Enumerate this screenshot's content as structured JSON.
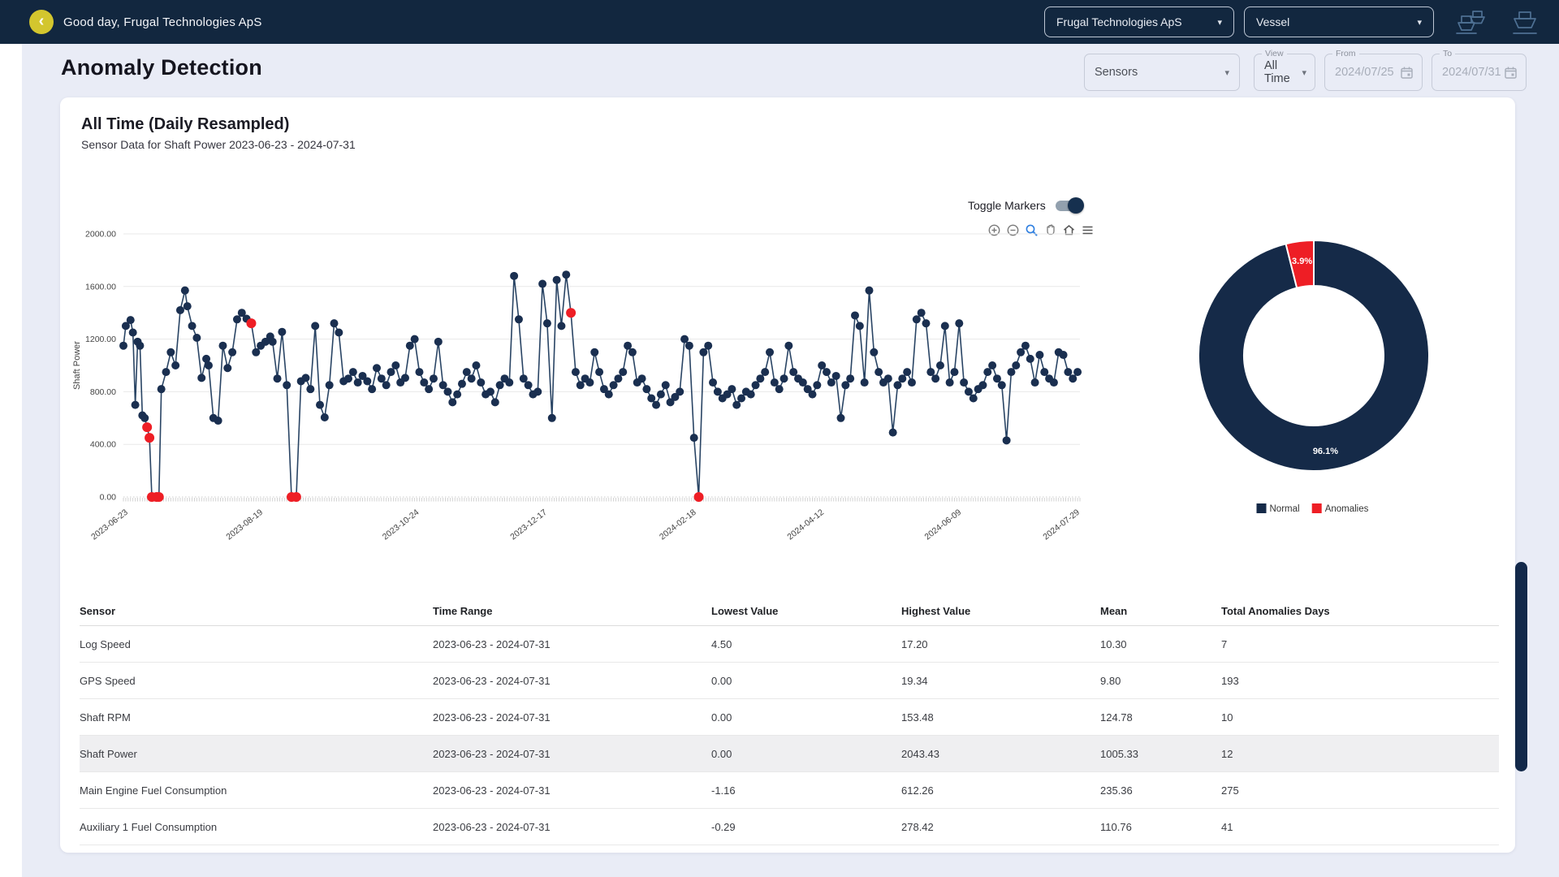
{
  "navbar": {
    "back_glyph": "‹",
    "greeting": "Good day, Frugal Technologies ApS",
    "company_select": {
      "value": "Frugal Technologies ApS",
      "caret": "▾"
    },
    "vessel_select": {
      "value": "Vessel",
      "caret": "▾"
    }
  },
  "page": {
    "title": "Anomaly Detection"
  },
  "filters": {
    "sensors": {
      "value": "Sensors",
      "caret": "▾"
    },
    "view": {
      "label": "View",
      "value": "All Time",
      "caret": "▾"
    },
    "from": {
      "label": "From",
      "value": "2024/07/25"
    },
    "to": {
      "label": "To",
      "value": "2024/07/31"
    }
  },
  "card": {
    "title": "All Time (Daily Resampled)",
    "subtitle": "Sensor Data for Shaft Power 2023-06-23 - 2024-07-31",
    "toggle_markers_label": "Toggle Markers",
    "toggle_markers_on": true
  },
  "chart_data": [
    {
      "type": "scatter",
      "title": "Sensor Data for Shaft Power 2023-06-23 - 2024-07-31",
      "xlabel": "",
      "ylabel": "Shaft Power",
      "ylim": [
        0,
        2000
      ],
      "ytick_values": [
        0,
        400,
        800,
        1200,
        1600,
        2000
      ],
      "ytick_labels": [
        "0.00",
        "400.00",
        "800.00",
        "1200.00",
        "1600.00",
        "2000.00"
      ],
      "xtick_labels": [
        "2023-06-23",
        "2023-08-19",
        "2023-10-24",
        "2023-12-17",
        "2024-02-18",
        "2024-04-12",
        "2024-06-09",
        "2024-07-29"
      ],
      "xtick_days": [
        0,
        57,
        123,
        177,
        240,
        294,
        352,
        402
      ],
      "x_day_range": [
        0,
        404
      ],
      "grid": true,
      "colors": {
        "normal": "#1a2f50",
        "anomaly": "#ee1e25",
        "line": "#1d3a5c"
      },
      "points_format": "[day_offset_from_2023-06-23, shaft_power_value, 1_if_anomaly]",
      "points": [
        [
          0,
          1150
        ],
        [
          1,
          1300
        ],
        [
          3,
          1345
        ],
        [
          4,
          1250
        ],
        [
          5,
          700
        ],
        [
          6,
          1180
        ],
        [
          7,
          1150
        ],
        [
          8,
          620
        ],
        [
          9,
          600
        ],
        [
          10,
          530,
          1
        ],
        [
          11,
          450,
          1
        ],
        [
          12,
          0,
          1
        ],
        [
          14,
          0,
          1
        ],
        [
          15,
          0,
          1
        ],
        [
          16,
          820
        ],
        [
          18,
          950
        ],
        [
          20,
          1100
        ],
        [
          22,
          1000
        ],
        [
          24,
          1420
        ],
        [
          26,
          1570
        ],
        [
          27,
          1450
        ],
        [
          29,
          1300
        ],
        [
          31,
          1210
        ],
        [
          33,
          905
        ],
        [
          35,
          1050
        ],
        [
          36,
          1000
        ],
        [
          38,
          600
        ],
        [
          40,
          580
        ],
        [
          42,
          1150
        ],
        [
          44,
          980
        ],
        [
          46,
          1100
        ],
        [
          48,
          1350
        ],
        [
          50,
          1400
        ],
        [
          52,
          1355
        ],
        [
          54,
          1320,
          1
        ],
        [
          56,
          1100
        ],
        [
          58,
          1150
        ],
        [
          60,
          1180
        ],
        [
          62,
          1220
        ],
        [
          63,
          1180
        ],
        [
          65,
          900
        ],
        [
          67,
          1255
        ],
        [
          69,
          850
        ],
        [
          71,
          0,
          1
        ],
        [
          73,
          0,
          1
        ],
        [
          75,
          880
        ],
        [
          77,
          905
        ],
        [
          79,
          820
        ],
        [
          81,
          1300
        ],
        [
          83,
          700
        ],
        [
          85,
          605
        ],
        [
          87,
          850
        ],
        [
          89,
          1320
        ],
        [
          91,
          1250
        ],
        [
          93,
          880
        ],
        [
          95,
          900
        ],
        [
          97,
          950
        ],
        [
          99,
          870
        ],
        [
          101,
          920
        ],
        [
          103,
          880
        ],
        [
          105,
          820
        ],
        [
          107,
          980
        ],
        [
          109,
          900
        ],
        [
          111,
          850
        ],
        [
          113,
          950
        ],
        [
          115,
          1000
        ],
        [
          117,
          870
        ],
        [
          119,
          905
        ],
        [
          121,
          1150
        ],
        [
          123,
          1200
        ],
        [
          125,
          950
        ],
        [
          127,
          870
        ],
        [
          129,
          820
        ],
        [
          131,
          900
        ],
        [
          133,
          1180
        ],
        [
          135,
          850
        ],
        [
          137,
          800
        ],
        [
          139,
          720
        ],
        [
          141,
          780
        ],
        [
          143,
          860
        ],
        [
          145,
          950
        ],
        [
          147,
          900
        ],
        [
          149,
          1000
        ],
        [
          151,
          870
        ],
        [
          153,
          780
        ],
        [
          155,
          800
        ],
        [
          157,
          720
        ],
        [
          159,
          850
        ],
        [
          161,
          900
        ],
        [
          163,
          870
        ],
        [
          165,
          1680
        ],
        [
          167,
          1350
        ],
        [
          169,
          900
        ],
        [
          171,
          850
        ],
        [
          173,
          780
        ],
        [
          175,
          800
        ],
        [
          177,
          1620
        ],
        [
          179,
          1320
        ],
        [
          181,
          600
        ],
        [
          183,
          1650
        ],
        [
          185,
          1300
        ],
        [
          187,
          1690
        ],
        [
          189,
          1400,
          1
        ],
        [
          191,
          950
        ],
        [
          193,
          850
        ],
        [
          195,
          900
        ],
        [
          197,
          870
        ],
        [
          199,
          1100
        ],
        [
          201,
          950
        ],
        [
          203,
          820
        ],
        [
          205,
          780
        ],
        [
          207,
          850
        ],
        [
          209,
          900
        ],
        [
          211,
          950
        ],
        [
          213,
          1150
        ],
        [
          215,
          1100
        ],
        [
          217,
          870
        ],
        [
          219,
          900
        ],
        [
          221,
          820
        ],
        [
          223,
          750
        ],
        [
          225,
          700
        ],
        [
          227,
          780
        ],
        [
          229,
          850
        ],
        [
          231,
          720
        ],
        [
          233,
          760
        ],
        [
          235,
          800
        ],
        [
          237,
          1200
        ],
        [
          239,
          1150
        ],
        [
          241,
          450
        ],
        [
          243,
          0,
          1
        ],
        [
          245,
          1100
        ],
        [
          247,
          1150
        ],
        [
          249,
          870
        ],
        [
          251,
          800
        ],
        [
          253,
          750
        ],
        [
          255,
          780
        ],
        [
          257,
          820
        ],
        [
          259,
          700
        ],
        [
          261,
          750
        ],
        [
          263,
          800
        ],
        [
          265,
          780
        ],
        [
          267,
          850
        ],
        [
          269,
          900
        ],
        [
          271,
          950
        ],
        [
          273,
          1100
        ],
        [
          275,
          870
        ],
        [
          277,
          820
        ],
        [
          279,
          900
        ],
        [
          281,
          1150
        ],
        [
          283,
          950
        ],
        [
          285,
          900
        ],
        [
          287,
          870
        ],
        [
          289,
          820
        ],
        [
          291,
          780
        ],
        [
          293,
          850
        ],
        [
          295,
          1000
        ],
        [
          297,
          950
        ],
        [
          299,
          870
        ],
        [
          301,
          920
        ],
        [
          303,
          600
        ],
        [
          305,
          850
        ],
        [
          307,
          900
        ],
        [
          309,
          1380
        ],
        [
          311,
          1300
        ],
        [
          313,
          870
        ],
        [
          315,
          1570
        ],
        [
          317,
          1100
        ],
        [
          319,
          950
        ],
        [
          321,
          870
        ],
        [
          323,
          900
        ],
        [
          325,
          490
        ],
        [
          327,
          850
        ],
        [
          329,
          900
        ],
        [
          331,
          950
        ],
        [
          333,
          870
        ],
        [
          335,
          1350
        ],
        [
          337,
          1400
        ],
        [
          339,
          1320
        ],
        [
          341,
          950
        ],
        [
          343,
          900
        ],
        [
          345,
          1000
        ],
        [
          347,
          1300
        ],
        [
          349,
          870
        ],
        [
          351,
          950
        ],
        [
          353,
          1320
        ],
        [
          355,
          870
        ],
        [
          357,
          800
        ],
        [
          359,
          750
        ],
        [
          361,
          820
        ],
        [
          363,
          850
        ],
        [
          365,
          950
        ],
        [
          367,
          1000
        ],
        [
          369,
          900
        ],
        [
          371,
          850
        ],
        [
          373,
          430
        ],
        [
          375,
          950
        ],
        [
          377,
          1000
        ],
        [
          379,
          1100
        ],
        [
          381,
          1150
        ],
        [
          383,
          1050
        ],
        [
          385,
          870
        ],
        [
          387,
          1080
        ],
        [
          389,
          950
        ],
        [
          391,
          900
        ],
        [
          393,
          870
        ],
        [
          395,
          1100
        ],
        [
          397,
          1080
        ],
        [
          399,
          950
        ],
        [
          401,
          900
        ],
        [
          403,
          950
        ]
      ]
    },
    {
      "type": "pie",
      "donut": true,
      "labels": [
        "Normal",
        "Anomalies"
      ],
      "values": [
        96.1,
        3.9
      ],
      "percent_labels": [
        "96.1%",
        "3.9%"
      ],
      "colors": [
        "#152a48",
        "#ee1e25"
      ],
      "legend_position": "bottom"
    }
  ],
  "table": {
    "columns": [
      "Sensor",
      "Time Range",
      "Lowest Value",
      "Highest Value",
      "Mean",
      "Total Anomalies Days"
    ],
    "highlighted_row": "Shaft Power",
    "rows": [
      [
        "Log Speed",
        "2023-06-23 - 2024-07-31",
        "4.50",
        "17.20",
        "10.30",
        "7"
      ],
      [
        "GPS Speed",
        "2023-06-23 - 2024-07-31",
        "0.00",
        "19.34",
        "9.80",
        "193"
      ],
      [
        "Shaft RPM",
        "2023-06-23 - 2024-07-31",
        "0.00",
        "153.48",
        "124.78",
        "10"
      ],
      [
        "Shaft Power",
        "2023-06-23 - 2024-07-31",
        "0.00",
        "2043.43",
        "1005.33",
        "12"
      ],
      [
        "Main Engine Fuel Consumption",
        "2023-06-23 - 2024-07-31",
        "-1.16",
        "612.26",
        "235.36",
        "275"
      ],
      [
        "Auxiliary 1 Fuel Consumption",
        "2023-06-23 - 2024-07-31",
        "-0.29",
        "278.42",
        "110.76",
        "41"
      ]
    ]
  }
}
